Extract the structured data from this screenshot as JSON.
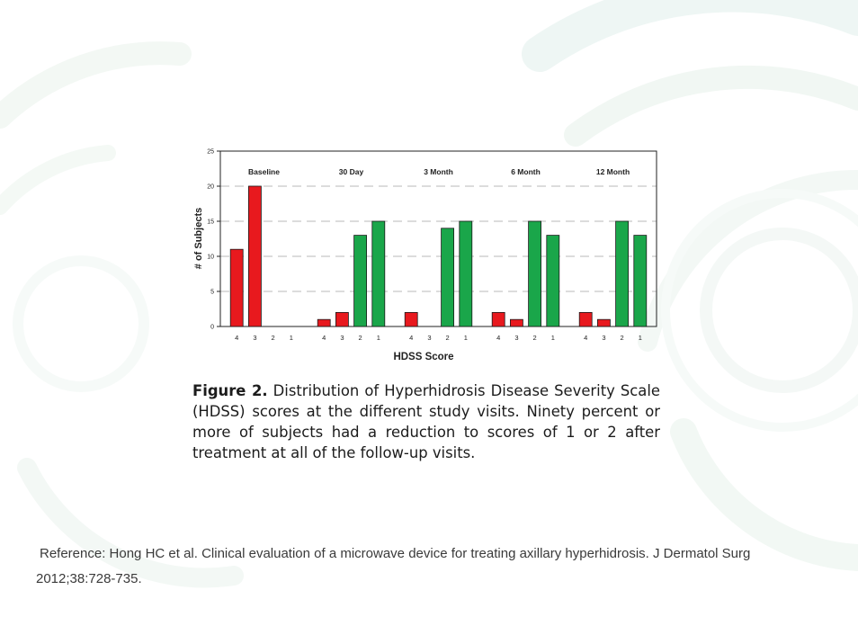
{
  "chart_data": {
    "type": "bar",
    "ylabel": "# of Subjects",
    "xlabel": "HDSS Score",
    "ylim": [
      0,
      25
    ],
    "yticks": [
      "0",
      "5",
      "10",
      "15",
      "20",
      "25"
    ],
    "grid": true,
    "categories": [
      "4",
      "3",
      "2",
      "1"
    ],
    "colors": {
      "score4": "#e8191e",
      "score3": "#e8191e",
      "score2": "#1aa64a",
      "score1": "#1aa64a"
    },
    "groups": [
      {
        "name": "Baseline",
        "values": [
          11,
          20,
          0,
          0
        ]
      },
      {
        "name": "30 Day",
        "values": [
          1,
          2,
          13,
          15
        ]
      },
      {
        "name": "3 Month",
        "values": [
          2,
          0,
          14,
          15
        ]
      },
      {
        "name": "6 Month",
        "values": [
          2,
          1,
          15,
          13
        ]
      },
      {
        "name": "12 Month",
        "values": [
          2,
          1,
          15,
          13
        ]
      }
    ]
  },
  "caption": {
    "label": "Figure 2.",
    "text": " Distribution of Hyperhidrosis Disease Severity Scale (HDSS) scores at the different study visits. Ninety percent or more of subjects had a reduction to scores of 1 or 2 after treatment at all of the follow-up visits."
  },
  "reference": {
    "line1": "Reference: Hong HC et al. Clinical evaluation of a microwave device  for treating axillary  hyperhidrosis. J Dermatol Surg",
    "line2": "2012;38:728-735."
  }
}
